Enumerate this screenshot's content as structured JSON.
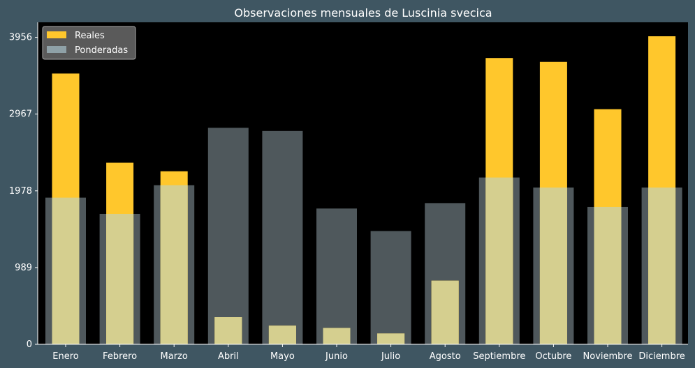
{
  "chart_data": {
    "type": "bar",
    "title": "Observaciones mensuales de Luscinia svecica",
    "xlabel": "",
    "ylabel": "",
    "categories": [
      "Enero",
      "Febrero",
      "Marzo",
      "Abril",
      "Mayo",
      "Junio",
      "Julio",
      "Agosto",
      "Septiembre",
      "Octubre",
      "Noviembre",
      "Diciembre"
    ],
    "series": [
      {
        "name": "Reales",
        "color": "#ffc72c",
        "values": [
          3490,
          2340,
          2230,
          350,
          240,
          210,
          140,
          820,
          3690,
          3640,
          3030,
          3970
        ]
      },
      {
        "name": "Ponderadas",
        "color": "#8fa1a7",
        "values": [
          1890,
          1680,
          2050,
          2790,
          2750,
          1750,
          1460,
          1820,
          2150,
          2020,
          1770,
          2020
        ]
      }
    ],
    "yticks": [
      0,
      989,
      1978,
      2967,
      3956
    ],
    "ylim": [
      0,
      4150
    ],
    "legend": "top-left",
    "grid": false,
    "colors": {
      "background": "#3f5662",
      "plot_background": "#000000",
      "overlap": "#d5cf8f"
    }
  }
}
